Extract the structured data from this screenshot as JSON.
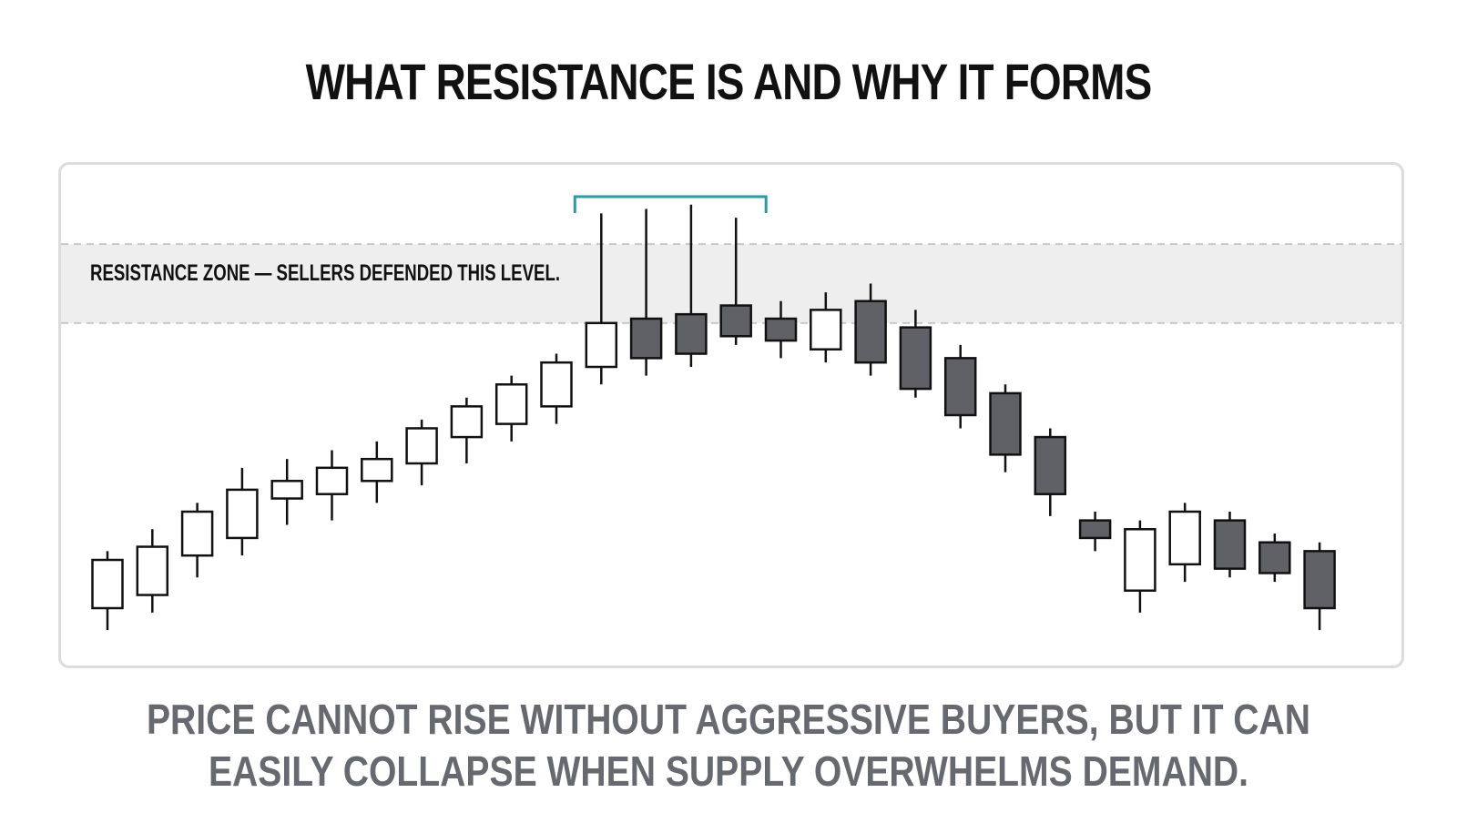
{
  "title": "WHAT RESISTANCE IS AND WHY IT FORMS",
  "caption": {
    "line1": "PRICE CANNOT RISE WITHOUT AGGRESSIVE BUYERS, BUT IT CAN",
    "line2": "EASILY COLLAPSE WHEN SUPPLY OVERWHELMS DEMAND."
  },
  "chart_data": {
    "type": "candlestick",
    "annotation": "RESISTANCE ZONE — SELLERS DEFENDED THIS LEVEL.",
    "resistance_zone": [
      86,
      104
    ],
    "ylim": [
      10,
      120
    ],
    "grid": false,
    "colors": {
      "bullish": "#ffffff",
      "bearish": "#5f6167",
      "outline": "#111111",
      "zone": "#eeeeee",
      "bracket": "#2b9aa7"
    },
    "bracket_candles": [
      11,
      14
    ],
    "candles": [
      {
        "o": 21,
        "h": 34,
        "l": 16,
        "c": 32
      },
      {
        "o": 24,
        "h": 39,
        "l": 20,
        "c": 35
      },
      {
        "o": 33,
        "h": 45,
        "l": 28,
        "c": 43
      },
      {
        "o": 37,
        "h": 53,
        "l": 33,
        "c": 48
      },
      {
        "o": 46,
        "h": 55,
        "l": 40,
        "c": 50
      },
      {
        "o": 47,
        "h": 57,
        "l": 41,
        "c": 53
      },
      {
        "o": 50,
        "h": 59,
        "l": 45,
        "c": 55
      },
      {
        "o": 54,
        "h": 64,
        "l": 49,
        "c": 62
      },
      {
        "o": 60,
        "h": 69,
        "l": 54,
        "c": 67
      },
      {
        "o": 63,
        "h": 74,
        "l": 59,
        "c": 72
      },
      {
        "o": 67,
        "h": 79,
        "l": 63,
        "c": 77
      },
      {
        "o": 76,
        "h": 111,
        "l": 72,
        "c": 86
      },
      {
        "o": 87,
        "h": 112,
        "l": 74,
        "c": 78
      },
      {
        "o": 88,
        "h": 113,
        "l": 76,
        "c": 79
      },
      {
        "o": 90,
        "h": 110,
        "l": 81,
        "c": 83
      },
      {
        "o": 87,
        "h": 91,
        "l": 78,
        "c": 82
      },
      {
        "o": 80,
        "h": 93,
        "l": 77,
        "c": 89
      },
      {
        "o": 91,
        "h": 95,
        "l": 74,
        "c": 77
      },
      {
        "o": 85,
        "h": 89,
        "l": 69,
        "c": 71
      },
      {
        "o": 78,
        "h": 81,
        "l": 62,
        "c": 65
      },
      {
        "o": 70,
        "h": 72,
        "l": 52,
        "c": 56
      },
      {
        "o": 60,
        "h": 62,
        "l": 42,
        "c": 47
      },
      {
        "o": 41,
        "h": 43,
        "l": 34,
        "c": 37
      },
      {
        "o": 25,
        "h": 41,
        "l": 20,
        "c": 39
      },
      {
        "o": 31,
        "h": 45,
        "l": 27,
        "c": 43
      },
      {
        "o": 41,
        "h": 43,
        "l": 28,
        "c": 30
      },
      {
        "o": 36,
        "h": 38,
        "l": 27,
        "c": 29
      },
      {
        "o": 34,
        "h": 36,
        "l": 16,
        "c": 21
      }
    ]
  }
}
